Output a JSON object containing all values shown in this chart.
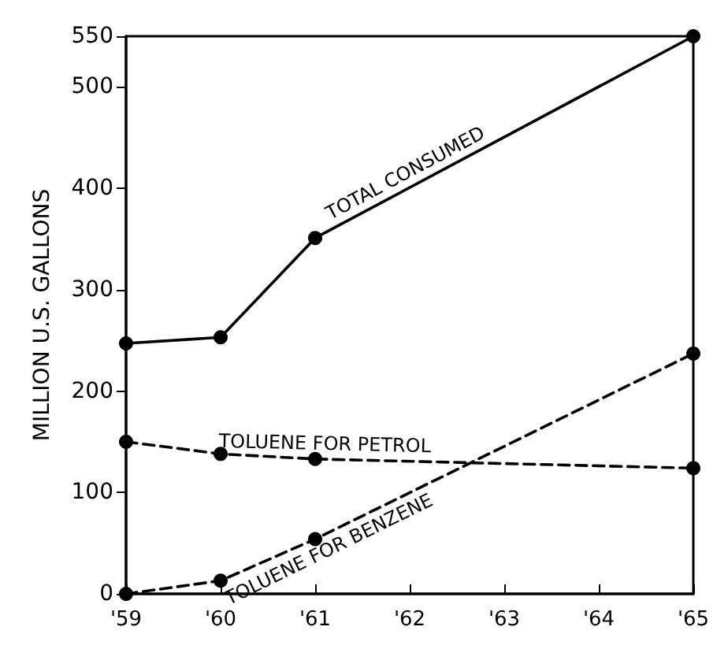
{
  "chart_data": {
    "type": "line",
    "ylabel": "MILLION U.S. GALLONS",
    "categories": [
      "'59",
      "'60",
      "'61",
      "'62",
      "'63",
      "'64",
      "'65"
    ],
    "series": [
      {
        "name": "TOTAL CONSUMED",
        "color": "#000000",
        "line_style": "solid",
        "values": [
          247,
          253,
          351,
          null,
          null,
          null,
          550
        ]
      },
      {
        "name": "TOLUENE FOR PETROL",
        "color": "#000000",
        "line_style": "dashed",
        "values": [
          150,
          138,
          133,
          null,
          null,
          null,
          124
        ]
      },
      {
        "name": "TOLUENE FOR BENZENE",
        "color": "#000000",
        "line_style": "dashed",
        "values": [
          0,
          13,
          54,
          null,
          null,
          null,
          237
        ]
      }
    ],
    "ylim": [
      0,
      550
    ],
    "yticks": [
      0,
      100,
      200,
      300,
      400,
      500,
      550
    ],
    "grid": false,
    "legend": false,
    "marker": "circle"
  }
}
